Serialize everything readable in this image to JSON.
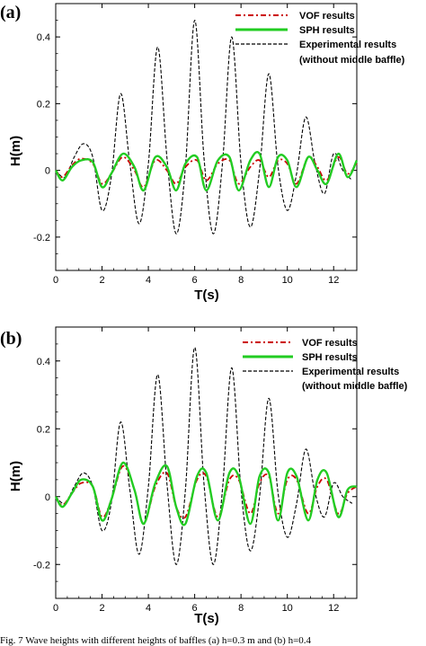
{
  "chart_data": [
    {
      "panel": "(a)",
      "type": "line",
      "xlabel": "T(s)",
      "ylabel": "H(m)",
      "xlim": [
        0,
        13
      ],
      "ylim": [
        -0.3,
        0.5
      ],
      "xticks": [
        "0",
        "2",
        "4",
        "6",
        "8",
        "10",
        "12"
      ],
      "yticks": [
        "-0.2",
        "0",
        "0.2",
        "0.4"
      ],
      "legend_position": "top-right",
      "legend": [
        "VOF results",
        "SPH results",
        "Experimental results",
        "(without middle baffle)"
      ],
      "series": [
        {
          "name": "VOF results",
          "color": "#cc0000",
          "style": "dash-dot",
          "x": [
            0,
            0.3,
            0.7,
            1.1,
            1.6,
            2.0,
            2.4,
            2.9,
            3.4,
            3.8,
            4.3,
            4.8,
            5.2,
            5.6,
            6.1,
            6.5,
            7.0,
            7.5,
            7.9,
            8.4,
            8.8,
            9.2,
            9.6,
            10.0,
            10.4,
            10.9,
            11.3,
            11.7,
            12.2,
            12.6,
            13.0
          ],
          "y": [
            0,
            -0.02,
            0.015,
            0.035,
            0.02,
            -0.04,
            -0.01,
            0.04,
            0.0,
            -0.05,
            0.03,
            0.0,
            -0.04,
            0.01,
            0.03,
            -0.03,
            0.02,
            0.03,
            -0.04,
            0.01,
            0.03,
            -0.02,
            0.03,
            0.02,
            -0.04,
            0.04,
            0.01,
            -0.03,
            0.04,
            -0.01,
            0.02
          ]
        },
        {
          "name": "SPH results",
          "color": "#22cc22",
          "style": "solid",
          "x": [
            0,
            0.3,
            0.7,
            1.1,
            1.6,
            2.0,
            2.4,
            2.9,
            3.4,
            3.8,
            4.3,
            4.8,
            5.2,
            5.6,
            6.1,
            6.5,
            7.0,
            7.5,
            7.9,
            8.4,
            8.8,
            9.2,
            9.6,
            10.0,
            10.4,
            10.9,
            11.3,
            11.7,
            12.2,
            12.6,
            13.0
          ],
          "y": [
            0,
            -0.03,
            0.01,
            0.03,
            0.025,
            -0.05,
            -0.01,
            0.05,
            0.01,
            -0.06,
            0.04,
            0.01,
            -0.06,
            0.02,
            0.04,
            -0.06,
            0.03,
            0.04,
            -0.06,
            0.03,
            0.05,
            -0.05,
            0.04,
            0.03,
            -0.05,
            0.04,
            0.0,
            -0.04,
            0.05,
            -0.02,
            0.03
          ]
        },
        {
          "name": "Experimental results",
          "color": "#000000",
          "style": "dash",
          "x": [
            0,
            0.4,
            0.8,
            1.2,
            1.6,
            2.0,
            2.4,
            2.8,
            3.2,
            3.6,
            4.0,
            4.4,
            4.8,
            5.2,
            5.6,
            6.0,
            6.4,
            6.8,
            7.2,
            7.6,
            8.0,
            8.4,
            8.8,
            9.2,
            9.6,
            10.0,
            10.4,
            10.8,
            11.2,
            11.6,
            12.0,
            12.4,
            12.8
          ],
          "y": [
            0,
            -0.02,
            0.04,
            0.08,
            0.04,
            -0.12,
            -0.02,
            0.23,
            0.02,
            -0.16,
            0.02,
            0.37,
            0.04,
            -0.19,
            0.01,
            0.45,
            0.04,
            -0.19,
            0.02,
            0.4,
            0.02,
            -0.17,
            0.0,
            0.29,
            0.01,
            -0.12,
            -0.01,
            0.16,
            0.02,
            -0.07,
            0.05,
            0.0,
            -0.03
          ]
        }
      ]
    },
    {
      "panel": "(b)",
      "type": "line",
      "xlabel": "T(s)",
      "ylabel": "H(m)",
      "xlim": [
        0,
        13
      ],
      "ylim": [
        -0.3,
        0.5
      ],
      "xticks": [
        "0",
        "2",
        "4",
        "6",
        "8",
        "10",
        "12"
      ],
      "yticks": [
        "-0.2",
        "0",
        "0.2",
        "0.4"
      ],
      "legend_position": "top-right",
      "legend": [
        "VOF results",
        "SPH results",
        "Experimental results",
        "(without middle baffle)"
      ],
      "series": [
        {
          "name": "VOF results",
          "color": "#cc0000",
          "style": "dash-dot",
          "x": [
            0,
            0.3,
            0.7,
            1.1,
            1.6,
            2.0,
            2.4,
            2.9,
            3.4,
            3.8,
            4.3,
            4.8,
            5.2,
            5.6,
            6.1,
            6.5,
            7.0,
            7.5,
            7.9,
            8.4,
            8.8,
            9.2,
            9.6,
            10.0,
            10.4,
            10.9,
            11.3,
            11.7,
            12.2,
            12.6,
            13.0
          ],
          "y": [
            0,
            -0.025,
            0.01,
            0.04,
            0.03,
            -0.06,
            -0.01,
            0.09,
            0.02,
            -0.08,
            0.03,
            0.07,
            -0.03,
            -0.06,
            0.05,
            0.06,
            -0.06,
            0.05,
            0.05,
            -0.05,
            0.04,
            0.06,
            -0.05,
            0.05,
            0.05,
            -0.05,
            0.03,
            0.05,
            -0.05,
            0.01,
            0.03
          ]
        },
        {
          "name": "SPH results",
          "color": "#22cc22",
          "style": "solid",
          "x": [
            0,
            0.3,
            0.7,
            1.1,
            1.6,
            2.0,
            2.4,
            2.9,
            3.4,
            3.8,
            4.3,
            4.8,
            5.2,
            5.6,
            6.1,
            6.5,
            7.0,
            7.5,
            7.9,
            8.4,
            8.8,
            9.2,
            9.6,
            10.0,
            10.4,
            10.9,
            11.3,
            11.7,
            12.2,
            12.6,
            13.0
          ],
          "y": [
            0,
            -0.03,
            0.01,
            0.05,
            0.03,
            -0.07,
            -0.01,
            0.1,
            0.02,
            -0.08,
            0.04,
            0.09,
            -0.03,
            -0.08,
            0.06,
            0.07,
            -0.07,
            0.07,
            0.06,
            -0.08,
            0.06,
            0.07,
            -0.07,
            0.07,
            0.06,
            -0.07,
            0.05,
            0.07,
            -0.06,
            0.02,
            0.03
          ]
        },
        {
          "name": "Experimental results",
          "color": "#000000",
          "style": "dash",
          "x": [
            0,
            0.4,
            0.8,
            1.2,
            1.6,
            2.0,
            2.4,
            2.8,
            3.2,
            3.6,
            4.0,
            4.4,
            4.8,
            5.2,
            5.6,
            6.0,
            6.4,
            6.8,
            7.2,
            7.6,
            8.0,
            8.4,
            8.8,
            9.2,
            9.6,
            10.0,
            10.4,
            10.8,
            11.2,
            11.6,
            12.0,
            12.4,
            12.8
          ],
          "y": [
            0,
            -0.02,
            0.03,
            0.07,
            0.03,
            -0.1,
            -0.02,
            0.22,
            0.02,
            -0.17,
            0.03,
            0.36,
            0.04,
            -0.2,
            0.02,
            0.44,
            0.04,
            -0.2,
            0.02,
            0.38,
            0.02,
            -0.16,
            0.0,
            0.29,
            0.01,
            -0.12,
            -0.02,
            0.14,
            0.01,
            -0.06,
            0.04,
            0.0,
            -0.02
          ]
        }
      ]
    }
  ],
  "caption": "Fig. 7  Wave heights with different heights of baffles (a) h=0.3 m and (b) h=0.4"
}
